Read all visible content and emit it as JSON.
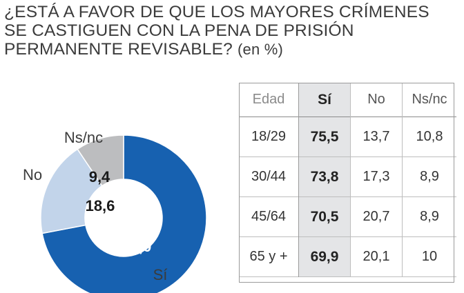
{
  "title": {
    "line1": "¿ESTÁ A FAVOR DE QUE LOS MAYORES CRÍMENES",
    "line2": "SE CASTIGUEN CON LA PENA DE PRISIÓN",
    "line3": "PERMANENTE REVISABLE?",
    "unit": "(en %)"
  },
  "colors": {
    "si": "#1761b0",
    "no": "#c2d4ea",
    "nsnc": "#bcbdbf"
  },
  "chart_data": [
    {
      "type": "pie",
      "title": "¿ESTÁ A FAVOR DE QUE LOS MAYORES CRÍMENES SE CASTIGUEN CON LA PENA DE PRISIÓN PERMANENTE REVISABLE?",
      "unit": "(en %)",
      "slices": [
        {
          "label": "Sí",
          "value": 72.0,
          "display": "72,0",
          "color": "#1761b0"
        },
        {
          "label": "No",
          "value": 18.6,
          "display": "18,6",
          "color": "#c2d4ea"
        },
        {
          "label": "Ns/nc",
          "value": 9.4,
          "display": "9,4",
          "color": "#bcbdbf"
        }
      ]
    },
    {
      "type": "table",
      "columns": [
        "Edad",
        "Sí",
        "No",
        "Ns/nc"
      ],
      "rows": [
        [
          "18/29",
          "75,5",
          "13,7",
          "10,8"
        ],
        [
          "30/44",
          "73,8",
          "17,3",
          "8,9"
        ],
        [
          "45/64",
          "70,5",
          "20,7",
          "8,9"
        ],
        [
          "65 y +",
          "69,9",
          "20,1",
          "10"
        ]
      ]
    }
  ]
}
